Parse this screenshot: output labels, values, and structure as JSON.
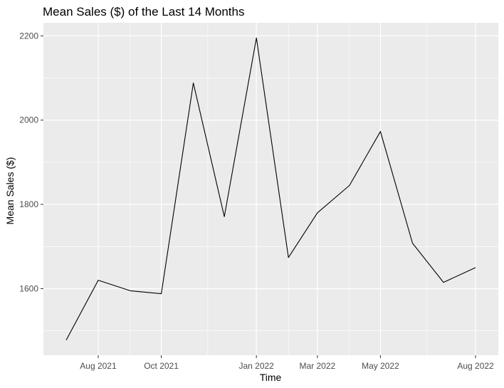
{
  "chart_data": {
    "type": "line",
    "title": "Mean Sales ($) of the Last 14 Months",
    "xlabel": "Time",
    "ylabel": "Mean Sales ($)",
    "x": [
      "2021-07-01",
      "2021-08-01",
      "2021-09-01",
      "2021-10-01",
      "2021-11-01",
      "2021-12-01",
      "2022-01-01",
      "2022-02-01",
      "2022-03-01",
      "2022-04-01",
      "2022-05-01",
      "2022-06-01",
      "2022-07-01",
      "2022-08-01"
    ],
    "series": [
      {
        "values": [
          1478,
          1620,
          1595,
          1588,
          2088,
          1771,
          2195,
          1674,
          1780,
          1845,
          1973,
          1708,
          1615,
          1650
        ]
      }
    ],
    "x_ticks": [
      {
        "date": "2021-08-01",
        "label": "Aug 2021"
      },
      {
        "date": "2021-10-01",
        "label": "Oct 2021"
      },
      {
        "date": "2022-01-01",
        "label": "Jan 2022"
      },
      {
        "date": "2022-03-01",
        "label": "Mar 2022"
      },
      {
        "date": "2022-05-01",
        "label": "May 2022"
      },
      {
        "date": "2022-08-01",
        "label": "Aug 2022"
      }
    ],
    "x_minor_ticks": [
      "2021-09-01",
      "2021-11-15",
      "2022-02-01",
      "2022-04-01",
      "2022-06-15"
    ],
    "y_ticks": [
      1600,
      1800,
      2000,
      2200
    ],
    "y_minor_ticks": [
      1500,
      1700,
      1900,
      2100
    ],
    "xlim": [
      "2021-06-09",
      "2022-08-23"
    ],
    "ylim": [
      1442,
      2231
    ],
    "grid": true,
    "colors": {
      "panel_background": "#ebebeb",
      "grid": "#ffffff",
      "line": "#000000",
      "tick_label": "#4d4d4d",
      "tick_mark": "#333333"
    }
  }
}
